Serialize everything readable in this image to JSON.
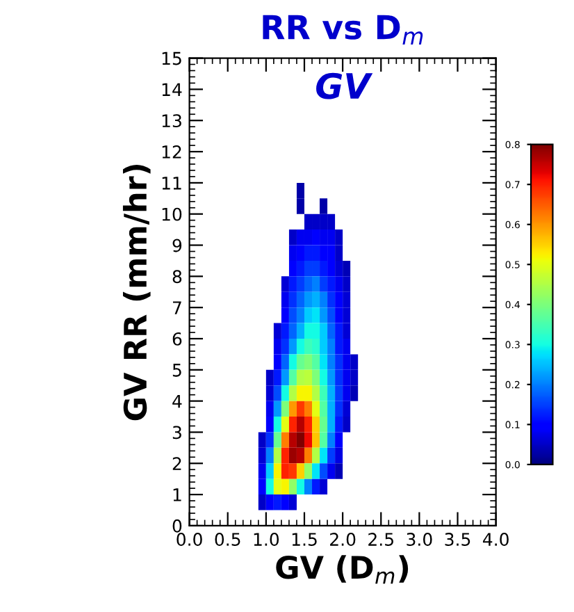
{
  "chart_data": {
    "type": "heatmap",
    "title": "RR vs D$_{m}$",
    "subtitle": "GV",
    "xlabel": "GV (D$_{m}$)",
    "ylabel": "GV RR (mm/hr)",
    "x": [
      0.95,
      1.05,
      1.15,
      1.25,
      1.35,
      1.45,
      1.55,
      1.65,
      1.75,
      1.85,
      1.95,
      2.05,
      2.15
    ],
    "y": [
      10.75,
      10.25,
      9.75,
      9.25,
      8.75,
      8.25,
      7.75,
      7.25,
      6.75,
      6.25,
      5.75,
      5.25,
      4.75,
      4.25,
      3.75,
      3.25,
      2.75,
      2.25,
      1.75,
      1.25,
      0.75
    ],
    "cells": [
      [
        null,
        null,
        null,
        null,
        null,
        0.03,
        null,
        null,
        null,
        null,
        null,
        null,
        null
      ],
      [
        null,
        null,
        null,
        null,
        null,
        0.03,
        null,
        null,
        0.03,
        null,
        null,
        null,
        null
      ],
      [
        null,
        null,
        null,
        null,
        null,
        null,
        0.05,
        0.05,
        0.05,
        0.05,
        null,
        null,
        null
      ],
      [
        null,
        null,
        null,
        null,
        0.05,
        0.08,
        0.08,
        0.1,
        0.08,
        0.08,
        0.05,
        null,
        null
      ],
      [
        null,
        null,
        null,
        null,
        0.08,
        0.1,
        0.12,
        0.12,
        0.1,
        0.1,
        0.05,
        null,
        null
      ],
      [
        null,
        null,
        null,
        null,
        0.1,
        0.12,
        0.15,
        0.15,
        0.12,
        0.1,
        0.06,
        0.04,
        null
      ],
      [
        null,
        null,
        null,
        0.06,
        0.12,
        0.15,
        0.18,
        0.2,
        0.15,
        0.12,
        0.08,
        0.05,
        null
      ],
      [
        null,
        null,
        null,
        0.08,
        0.14,
        0.18,
        0.22,
        0.24,
        0.2,
        0.14,
        0.1,
        0.06,
        null
      ],
      [
        null,
        null,
        null,
        0.1,
        0.16,
        0.2,
        0.26,
        0.28,
        0.22,
        0.16,
        0.1,
        0.06,
        null
      ],
      [
        null,
        null,
        0.06,
        0.12,
        0.18,
        0.24,
        0.3,
        0.3,
        0.26,
        0.18,
        0.12,
        0.06,
        null
      ],
      [
        null,
        null,
        0.08,
        0.14,
        0.22,
        0.3,
        0.34,
        0.32,
        0.26,
        0.2,
        0.12,
        0.08,
        null
      ],
      [
        null,
        null,
        0.1,
        0.18,
        0.3,
        0.38,
        0.4,
        0.36,
        0.28,
        0.2,
        0.14,
        0.08,
        0.05
      ],
      [
        null,
        0.05,
        0.12,
        0.22,
        0.36,
        0.45,
        0.46,
        0.4,
        0.3,
        0.22,
        0.14,
        0.08,
        0.05
      ],
      [
        null,
        0.06,
        0.16,
        0.3,
        0.45,
        0.52,
        0.52,
        0.45,
        0.34,
        0.24,
        0.15,
        0.08,
        0.04
      ],
      [
        null,
        0.08,
        0.22,
        0.4,
        0.6,
        0.68,
        0.62,
        0.5,
        0.36,
        0.24,
        0.14,
        0.06,
        null
      ],
      [
        null,
        0.1,
        0.3,
        0.5,
        0.7,
        0.76,
        0.7,
        0.55,
        0.38,
        0.24,
        0.12,
        0.05,
        null
      ],
      [
        0.05,
        0.14,
        0.38,
        0.62,
        0.76,
        0.8,
        0.72,
        0.56,
        0.36,
        0.2,
        0.1,
        null,
        null
      ],
      [
        0.06,
        0.2,
        0.45,
        0.7,
        0.78,
        0.76,
        0.62,
        0.45,
        0.28,
        0.15,
        0.07,
        null,
        null
      ],
      [
        0.08,
        0.26,
        0.52,
        0.7,
        0.68,
        0.55,
        0.42,
        0.28,
        0.16,
        0.08,
        0.04,
        null,
        null
      ],
      [
        0.1,
        0.3,
        0.5,
        0.52,
        0.42,
        0.3,
        0.2,
        0.12,
        0.06,
        null,
        null,
        null,
        null
      ],
      [
        0.05,
        0.1,
        0.12,
        0.1,
        0.06,
        null,
        null,
        null,
        null,
        null,
        null,
        null,
        null
      ]
    ],
    "clim": [
      0,
      0.8
    ],
    "cticks": [
      {
        "value": 0,
        "label": "0.0"
      },
      0.1,
      0.2,
      0.3,
      0.4,
      0.5,
      0.6,
      0.7,
      0.8
    ],
    "xlim": [
      0,
      4
    ],
    "xticks": [
      {
        "value": 0,
        "label": "0.0"
      },
      0.5,
      {
        "value": 1,
        "label": "1.0"
      },
      1.5,
      {
        "value": 2,
        "label": "2.0"
      },
      2.5,
      {
        "value": 3,
        "label": "3.0"
      },
      3.5,
      {
        "value": 4,
        "label": "4.0"
      }
    ],
    "ylim": [
      0,
      15
    ],
    "yticks": [
      0,
      1,
      2,
      3,
      4,
      5,
      6,
      7,
      8,
      9,
      10,
      11,
      12,
      13,
      14,
      15
    ],
    "grid": false
  }
}
